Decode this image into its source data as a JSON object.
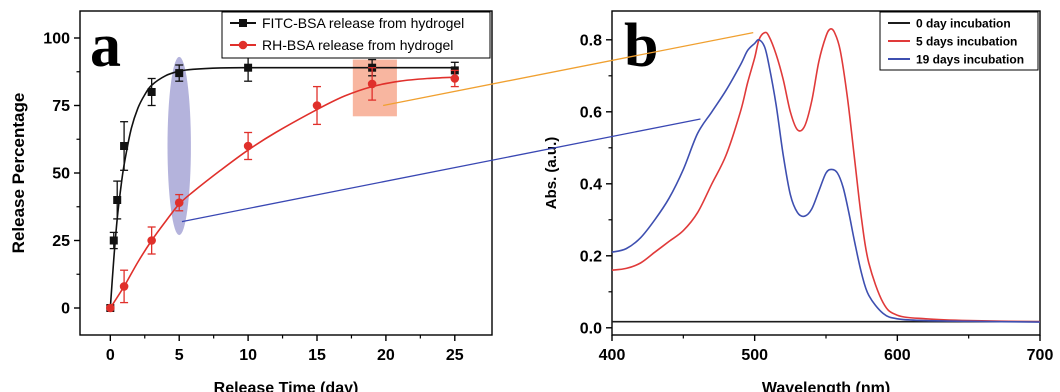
{
  "chart_data": [
    {
      "type": "line",
      "panel_label": "a",
      "xlabel": "Release Time (day)",
      "ylabel": "Release Percentage",
      "xlim": [
        -2.2,
        27.7
      ],
      "ylim": [
        -10,
        110
      ],
      "xticks": [
        0,
        5,
        10,
        15,
        20,
        25
      ],
      "yticks": [
        0,
        25,
        50,
        75,
        100
      ],
      "grid": false,
      "legend_position": "top-right",
      "series": [
        {
          "name": "FITC-BSA release from hydrogel",
          "color": "#111111",
          "marker": "square",
          "x": [
            0,
            0.25,
            0.5,
            1,
            3,
            5,
            10,
            19,
            25
          ],
          "y": [
            0,
            25,
            40,
            60,
            80,
            87,
            89,
            89,
            88
          ],
          "err": [
            0,
            3,
            7,
            9,
            5,
            3,
            5,
            3,
            3
          ],
          "fit": [
            [
              0,
              0
            ],
            [
              0.25,
              18
            ],
            [
              0.5,
              33
            ],
            [
              0.75,
              44
            ],
            [
              1,
              53
            ],
            [
              1.5,
              66
            ],
            [
              2,
              74
            ],
            [
              2.5,
              79
            ],
            [
              3,
              82.5
            ],
            [
              4,
              86
            ],
            [
              5,
              87.7
            ],
            [
              6,
              88.4
            ],
            [
              8,
              88.9
            ],
            [
              10,
              89
            ],
            [
              15,
              89
            ],
            [
              20,
              89
            ],
            [
              25,
              89
            ]
          ]
        },
        {
          "name": "RH-BSA release from hydrogel",
          "color": "#e0302b",
          "marker": "circle",
          "x": [
            0,
            1,
            3,
            5,
            10,
            15,
            19,
            25
          ],
          "y": [
            0,
            8,
            25,
            39,
            60,
            75,
            83,
            85
          ],
          "err": [
            0,
            6,
            5,
            3,
            5,
            7,
            6,
            3
          ],
          "fit": [
            [
              0,
              0
            ],
            [
              1,
              8
            ],
            [
              2,
              17
            ],
            [
              3,
              25
            ],
            [
              4,
              32
            ],
            [
              5,
              38.5
            ],
            [
              6,
              43
            ],
            [
              8,
              51
            ],
            [
              10,
              58.5
            ],
            [
              12,
              65
            ],
            [
              15,
              73.5
            ],
            [
              17,
              78.5
            ],
            [
              19,
              82
            ],
            [
              21,
              84
            ],
            [
              23,
              85
            ],
            [
              25,
              85.5
            ]
          ]
        }
      ],
      "annotations": [
        {
          "shape": "ellipse",
          "x": 5,
          "y": 60,
          "rx": 0.85,
          "ry": 33,
          "color": "#9b9ad0"
        },
        {
          "shape": "rect",
          "x0": 17.6,
          "x1": 20.8,
          "y0": 71,
          "y1": 92,
          "color": "#f7a98f"
        }
      ]
    },
    {
      "type": "line",
      "panel_label": "b",
      "xlabel": "Wavelength (nm)",
      "ylabel": "Abs. (a.u.)",
      "xlim": [
        400,
        700
      ],
      "ylim": [
        -0.02,
        0.88
      ],
      "xticks": [
        400,
        500,
        600,
        700
      ],
      "yticks": [
        0.0,
        0.2,
        0.4,
        0.6,
        0.8
      ],
      "grid": false,
      "legend_position": "top-right",
      "series": [
        {
          "name": "0 day incubation",
          "color": "#1c1c1c",
          "x": [
            400,
            700
          ],
          "y": [
            0.017,
            0.017
          ]
        },
        {
          "name": "5 days incubation",
          "color": "#e03a3a",
          "x": [
            400,
            410,
            420,
            430,
            440,
            450,
            460,
            470,
            480,
            490,
            495,
            500,
            503,
            507,
            510,
            515,
            520,
            525,
            530,
            535,
            540,
            545,
            550,
            553,
            556,
            560,
            565,
            570,
            575,
            580,
            590,
            600,
            620,
            650,
            700
          ],
          "y": [
            0.16,
            0.165,
            0.18,
            0.21,
            0.24,
            0.27,
            0.32,
            0.4,
            0.48,
            0.6,
            0.68,
            0.75,
            0.8,
            0.82,
            0.81,
            0.76,
            0.69,
            0.6,
            0.55,
            0.56,
            0.63,
            0.74,
            0.81,
            0.83,
            0.82,
            0.77,
            0.64,
            0.47,
            0.3,
            0.18,
            0.07,
            0.035,
            0.025,
            0.02,
            0.017
          ]
        },
        {
          "name": "19 days incubation",
          "color": "#3e4fb0",
          "x": [
            400,
            410,
            420,
            430,
            440,
            450,
            460,
            470,
            480,
            490,
            495,
            500,
            503,
            507,
            510,
            515,
            520,
            525,
            530,
            535,
            540,
            545,
            550,
            554,
            558,
            562,
            566,
            570,
            575,
            580,
            590,
            600,
            620,
            650,
            700
          ],
          "y": [
            0.21,
            0.22,
            0.25,
            0.3,
            0.36,
            0.44,
            0.54,
            0.6,
            0.66,
            0.73,
            0.77,
            0.79,
            0.8,
            0.78,
            0.73,
            0.62,
            0.48,
            0.37,
            0.32,
            0.31,
            0.33,
            0.38,
            0.43,
            0.44,
            0.43,
            0.39,
            0.32,
            0.24,
            0.15,
            0.09,
            0.04,
            0.025,
            0.02,
            0.018,
            0.016
          ]
        }
      ]
    }
  ]
}
